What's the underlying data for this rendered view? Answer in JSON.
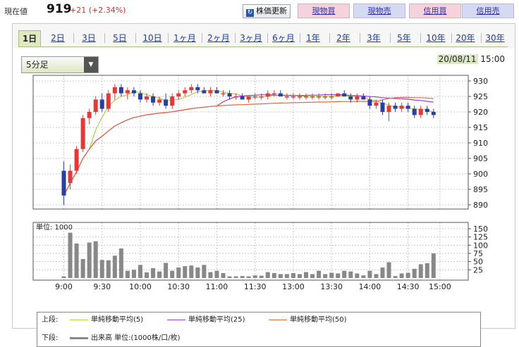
{
  "header": {
    "price_label": "現在値",
    "price": "919",
    "change": "+21 (+2.34%)",
    "update_button": "株価更新",
    "update_icon": "refresh-icon",
    "trade_buttons": [
      "現物買",
      "現物売",
      "信用買",
      "信用売"
    ]
  },
  "tabs": [
    "1日",
    "2日",
    "3日",
    "5日",
    "10日",
    "1ヶ月",
    "2ヶ月",
    "3ヶ月",
    "6ヶ月",
    "1年",
    "2年",
    "3年",
    "5年",
    "10年",
    "20年",
    "30年"
  ],
  "active_tab": "1日",
  "interval_select": {
    "value": "5分足",
    "options": [
      "5分足"
    ]
  },
  "datetime": {
    "date": "20/08/11",
    "time": "15:00"
  },
  "colors": {
    "up": "#e23a3a",
    "down": "#2d3f9e",
    "ma5": "#b5cc4a",
    "ma25": "#9a3fd6",
    "ma50": "#e06a3c",
    "volume": "#888888"
  },
  "volume_unit_label": "単位: 1000",
  "legend": {
    "upper_label": "上段:",
    "lower_label": "下段:",
    "items": [
      {
        "label": "単純移動平均(5)",
        "color": "#b5cc4a"
      },
      {
        "label": "単純移動平均(25)",
        "color": "#9a3fd6"
      },
      {
        "label": "単純移動平均(50)",
        "color": "#e06a3c"
      }
    ],
    "volume_label": "出来高 単位:(1000株/口/枚)"
  },
  "chart_data": {
    "type": "candlestick",
    "price_axis": {
      "min": 890,
      "max": 930,
      "ticks": [
        930,
        925,
        920,
        915,
        910,
        905,
        900,
        895,
        890
      ]
    },
    "volume_axis": {
      "min": 0,
      "max": 150,
      "ticks": [
        150,
        125,
        100,
        75,
        50,
        25
      ]
    },
    "x_tick_labels": [
      "9:00",
      "9:30",
      "10:00",
      "10:30",
      "11:00",
      "11:30",
      "13:00",
      "13:30",
      "14:00",
      "14:30",
      "15:00"
    ],
    "candles": [
      [
        901,
        904,
        890,
        893,
        5
      ],
      [
        897,
        903,
        895,
        901,
        138
      ],
      [
        901,
        909,
        900,
        908,
        105
      ],
      [
        908,
        919,
        907,
        918,
        58
      ],
      [
        918,
        921,
        916,
        920,
        108
      ],
      [
        920,
        925,
        919,
        924,
        112
      ],
      [
        924,
        926,
        920,
        921,
        55
      ],
      [
        921,
        927,
        920,
        926,
        54
      ],
      [
        926,
        929,
        924,
        928,
        68
      ],
      [
        928,
        929,
        925,
        926,
        90
      ],
      [
        926,
        928,
        924,
        927,
        22
      ],
      [
        927,
        928,
        925,
        926,
        25
      ],
      [
        926,
        927,
        923,
        924,
        40
      ],
      [
        924,
        926,
        923,
        925,
        17
      ],
      [
        925,
        926,
        922,
        923,
        30
      ],
      [
        923,
        925,
        922,
        924,
        20
      ],
      [
        924,
        926,
        921,
        922,
        46
      ],
      [
        922,
        926,
        921,
        925,
        22
      ],
      [
        925,
        927,
        924,
        926,
        32
      ],
      [
        926,
        928,
        925,
        927,
        36
      ],
      [
        927,
        929,
        926,
        928,
        38
      ],
      [
        928,
        929,
        926,
        927,
        32
      ],
      [
        927,
        928,
        926,
        926,
        40
      ],
      [
        926,
        928,
        925,
        927,
        18
      ],
      [
        927,
        928,
        926,
        926,
        22
      ],
      [
        926,
        927,
        925,
        926,
        15
      ],
      [
        926,
        927,
        924,
        925,
        5
      ],
      [
        925,
        926,
        924,
        925,
        5
      ],
      [
        925,
        926,
        924,
        924,
        6
      ],
      [
        924,
        925,
        923,
        925,
        5
      ],
      [
        925,
        926,
        924,
        925,
        8
      ],
      [
        925,
        926,
        924,
        925,
        7
      ],
      [
        925,
        927,
        924,
        926,
        18
      ],
      [
        926,
        927,
        925,
        926,
        15
      ],
      [
        926,
        927,
        925,
        925,
        12
      ],
      [
        925,
        926,
        924,
        925,
        12
      ],
      [
        925,
        926,
        924,
        925,
        15
      ],
      [
        925,
        926,
        924,
        925,
        12
      ],
      [
        925,
        926,
        924,
        925,
        18
      ],
      [
        925,
        926,
        924,
        925,
        12
      ],
      [
        925,
        926,
        924,
        925,
        22
      ],
      [
        925,
        926,
        924,
        925,
        12
      ],
      [
        925,
        926,
        924,
        925,
        16
      ],
      [
        925,
        926,
        925,
        926,
        14
      ],
      [
        926,
        927,
        925,
        925,
        22
      ],
      [
        925,
        926,
        923,
        924,
        20
      ],
      [
        924,
        926,
        923,
        925,
        14
      ],
      [
        925,
        926,
        924,
        924,
        8
      ],
      [
        924,
        925,
        921,
        922,
        22
      ],
      [
        922,
        924,
        921,
        923,
        12
      ],
      [
        923,
        924,
        919,
        920,
        32
      ],
      [
        920,
        923,
        917,
        922,
        48
      ],
      [
        922,
        923,
        920,
        921,
        6
      ],
      [
        921,
        923,
        920,
        922,
        14
      ],
      [
        922,
        923,
        920,
        921,
        16
      ],
      [
        921,
        922,
        918,
        919,
        28
      ],
      [
        919,
        922,
        918,
        921,
        42
      ],
      [
        921,
        922,
        919,
        920,
        45
      ],
      [
        920,
        921,
        918,
        919,
        75
      ]
    ]
  }
}
